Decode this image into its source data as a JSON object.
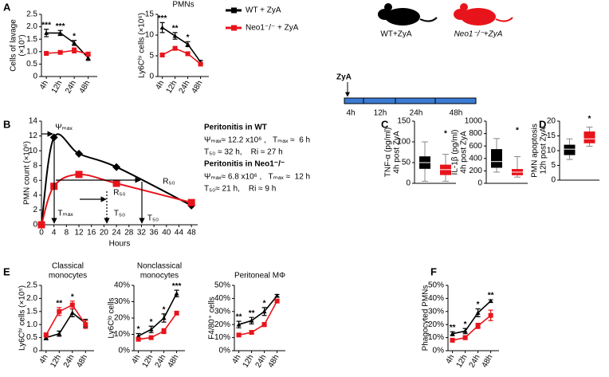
{
  "panels": [
    "A",
    "B",
    "C",
    "D",
    "E",
    "F"
  ],
  "schematic": {
    "mice": [
      "WT+ZyA",
      "Neo1⁻/⁻+ZyA"
    ],
    "injection": "ZyA",
    "timepoints": [
      "4h",
      "12h",
      "24h",
      "48h"
    ]
  },
  "chart_data": [
    {
      "type": "line",
      "ylabel": [
        "Cells of lavage",
        "(×10⁷)"
      ],
      "categories": [
        "4h",
        "12h",
        "24h",
        "48h"
      ],
      "ylim": [
        0,
        2.5
      ],
      "yticks": [
        0,
        0.5,
        {
          "value": 1,
          "label": "1.0"
        },
        1.5,
        {
          "value": 2,
          "label": "2.0"
        },
        2.5
      ],
      "series": [
        {
          "name": "WT + ZyA",
          "color": "#000000",
          "values": [
            1.75,
            1.75,
            1.35,
            0.75
          ],
          "errors": [
            0.15,
            0.1,
            0.1,
            0.1
          ]
        },
        {
          "name": "Neo1⁻/⁻ + ZyA",
          "color": "#e8141b",
          "values": [
            0.93,
            0.97,
            1.05,
            0.9
          ],
          "errors": [
            0.05,
            0.05,
            0.1,
            0.08
          ]
        }
      ],
      "significance": [
        "***",
        "***",
        "*",
        null
      ]
    },
    {
      "type": "line",
      "title": [
        "PMNs"
      ],
      "ylabel": [
        "Ly6Cʰⁱ cells (×10⁶)"
      ],
      "categories": [
        "4h",
        "12h",
        "24h",
        "48h"
      ],
      "ylim": [
        0,
        15
      ],
      "yticks": [
        0,
        5,
        10,
        15
      ],
      "series": [
        {
          "color": "#000000",
          "values": [
            11.8,
            9.8,
            7.8,
            3.5
          ],
          "errors": [
            1.2,
            0.8,
            0.6,
            0.4
          ]
        },
        {
          "color": "#e8141b",
          "values": [
            5.2,
            6.8,
            5.5,
            3.0
          ],
          "errors": [
            0.3,
            0.3,
            0.4,
            0.3
          ]
        }
      ],
      "significance": [
        "***",
        "**",
        "*",
        null
      ]
    },
    {
      "type": "curve",
      "xlabel": "Hours",
      "ylabel": [
        "PMN count (×10⁶)"
      ],
      "xlim": [
        0,
        50
      ],
      "xticks": [
        0,
        4,
        8,
        12,
        16,
        20,
        24,
        28,
        32,
        36,
        40,
        44,
        48
      ],
      "ylim": [
        0,
        14
      ],
      "yticks": [
        0,
        2,
        4,
        6,
        8,
        10,
        12,
        14
      ],
      "series": [
        {
          "color": "#000000",
          "x": [
            0,
            4,
            12,
            24,
            48
          ],
          "values": [
            0,
            11.8,
            9.6,
            7.8,
            2.6
          ]
        },
        {
          "color": "#e8141b",
          "x": [
            0,
            4,
            12,
            24,
            48
          ],
          "values": [
            0,
            5.2,
            6.8,
            5.6,
            3.0
          ]
        }
      ],
      "annotations": [
        "Ψₘₐₓ",
        "Tₘₐₓ",
        "R₅₀",
        "R₅₀",
        "T₅₀",
        "T₅₀"
      ],
      "notes": [
        "Peritonitis in WT",
        "Ψₘₐₓ≈ 12.2 x10⁶ ,   Tₘₐₓ ≈  6 h",
        "T₅₀ ≈ 32 h,    Ri ≈ 27 h",
        "Peritonitis in Neo1⁻/⁻",
        "Ψₘₐₓ≈ 6.8 x10⁶ ,   Tₘₐₓ ≈  12 h",
        "T₅₀≈ 21 h,    Ri ≈ 9 h"
      ]
    },
    {
      "type": "box",
      "ylabel": [
        "TNF-α (pg/ml)",
        "4h post ZyA"
      ],
      "ylim": [
        0,
        150
      ],
      "yticks": [
        0,
        50,
        100,
        150
      ],
      "series": [
        {
          "color": "#000000",
          "min": 5,
          "q1": 35,
          "median": 50,
          "q3": 65,
          "max": 100
        },
        {
          "color": "#e8141b",
          "min": 5,
          "q1": 20,
          "median": 33,
          "q3": 45,
          "max": 70
        }
      ],
      "significance": "*"
    },
    {
      "type": "box",
      "ylabel": [
        "IL-1β (pg/ml)",
        "4h post ZyA"
      ],
      "ylim": [
        0,
        1000
      ],
      "yticks": [
        0,
        200,
        400,
        600,
        800,
        1000
      ],
      "series": [
        {
          "color": "#000000",
          "min": 180,
          "q1": 250,
          "median": 350,
          "q3": 550,
          "max": 720
        },
        {
          "color": "#e8141b",
          "min": 100,
          "q1": 130,
          "median": 180,
          "q3": 230,
          "max": 430
        }
      ],
      "significance": "*"
    },
    {
      "type": "box",
      "ylabel": [
        "PMN apoptosis",
        "12h post ZyA"
      ],
      "ylim": [
        0,
        20
      ],
      "yticks": [
        0,
        5,
        10,
        15,
        20
      ],
      "series": [
        {
          "color": "#000000",
          "min": 7,
          "q1": 8.5,
          "median": 10.5,
          "q3": 12,
          "max": 14
        },
        {
          "color": "#e8141b",
          "min": 11.5,
          "q1": 12.5,
          "median": 14,
          "q3": 16.5,
          "max": 18
        }
      ],
      "significance": "*"
    },
    {
      "type": "line",
      "title": [
        "Classical",
        "monocytes"
      ],
      "ylabel": [
        "Ly6Cʰⁱ cells (×10⁵)"
      ],
      "categories": [
        "4h",
        "12h",
        "24h",
        "48h"
      ],
      "ylim": [
        0,
        2.5
      ],
      "yticks": [
        0,
        0.5,
        {
          "value": 1,
          "label": "1.0"
        },
        1.5,
        {
          "value": 2,
          "label": "2.0"
        },
        2.5
      ],
      "series": [
        {
          "color": "#000000",
          "values": [
            0.5,
            0.65,
            1.45,
            1.05
          ],
          "errors": [
            0.08,
            0.1,
            0.15,
            0.15
          ]
        },
        {
          "color": "#e8141b",
          "values": [
            0.6,
            1.5,
            1.75,
            1.0
          ],
          "errors": [
            0.08,
            0.15,
            0.15,
            0.15
          ]
        }
      ],
      "significance": [
        null,
        "**",
        "*",
        null
      ]
    },
    {
      "type": "line",
      "title": [
        "Nonclassical",
        "monocytes"
      ],
      "ylabel": [
        "Ly6Cˡᵒ cells"
      ],
      "categories": [
        "4h",
        "12h",
        "24h",
        "48h"
      ],
      "ylim": [
        0,
        40
      ],
      "yticks": [
        {
          "value": 0,
          "label": "0%"
        },
        {
          "value": 10,
          "label": "10%"
        },
        {
          "value": 20,
          "label": "20%"
        },
        {
          "value": 30,
          "label": "30%"
        },
        {
          "value": 40,
          "label": "40%"
        }
      ],
      "series": [
        {
          "color": "#000000",
          "values": [
            9,
            13,
            20,
            35
          ],
          "errors": [
            1.5,
            2,
            2.5,
            2
          ]
        },
        {
          "color": "#e8141b",
          "values": [
            7,
            8,
            12,
            23
          ],
          "errors": [
            1,
            1,
            1.5,
            1
          ]
        }
      ],
      "significance": [
        "*",
        "*",
        "*",
        "***"
      ]
    },
    {
      "type": "line",
      "title": [
        "Peritoneal MΦ"
      ],
      "ylabel": [
        "F4/80⁺ cells"
      ],
      "categories": [
        "4h",
        "12h",
        "24h",
        "48h"
      ],
      "ylim": [
        0,
        50
      ],
      "yticks": [
        {
          "value": 0,
          "label": "0%"
        },
        {
          "value": 10,
          "label": "10%"
        },
        {
          "value": 20,
          "label": "20%"
        },
        {
          "value": 30,
          "label": "30%"
        },
        {
          "value": 40,
          "label": "40%"
        },
        {
          "value": 50,
          "label": "50%"
        }
      ],
      "series": [
        {
          "color": "#000000",
          "values": [
            20,
            23,
            30,
            42
          ],
          "errors": [
            2.5,
            2.5,
            3,
            1
          ]
        },
        {
          "color": "#e8141b",
          "values": [
            12,
            14,
            20,
            38
          ],
          "errors": [
            1,
            1,
            1.5,
            1
          ]
        }
      ],
      "significance": [
        "**",
        "**",
        "*",
        null
      ]
    },
    {
      "type": "line",
      "ylabel": [
        "Phagocyted PMNs"
      ],
      "categories": [
        "4h",
        "12h",
        "24h",
        "48h"
      ],
      "ylim": [
        0,
        50
      ],
      "yticks": [
        {
          "value": 0,
          "label": "0%"
        },
        {
          "value": 10,
          "label": "10%"
        },
        {
          "value": 20,
          "label": "20%"
        },
        {
          "value": 30,
          "label": "30%"
        },
        {
          "value": 40,
          "label": "40%"
        },
        {
          "value": 50,
          "label": "50%"
        }
      ],
      "series": [
        {
          "color": "#000000",
          "values": [
            13,
            15,
            29,
            38
          ],
          "errors": [
            1.5,
            2,
            3,
            1
          ]
        },
        {
          "color": "#e8141b",
          "values": [
            8,
            10,
            19,
            27
          ],
          "errors": [
            1,
            1.5,
            2,
            4
          ]
        }
      ],
      "significance": [
        "**",
        "*",
        "*",
        "**"
      ]
    }
  ]
}
